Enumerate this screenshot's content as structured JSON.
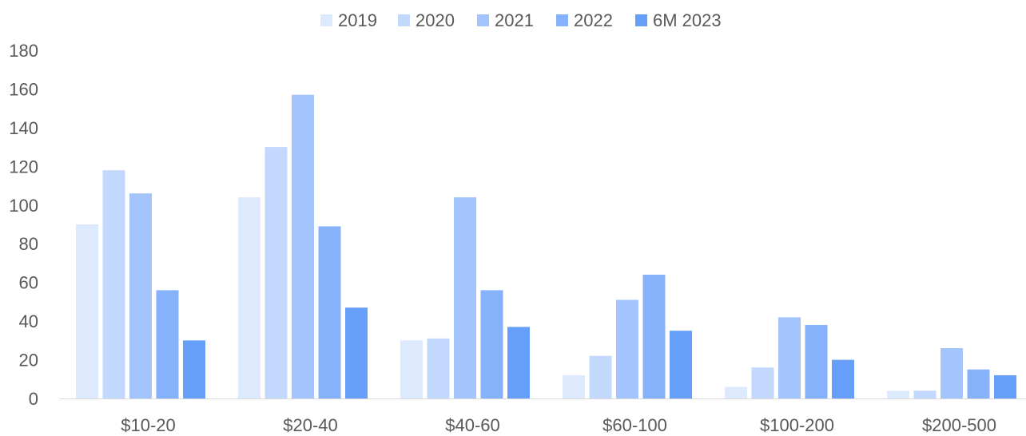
{
  "chart_data": {
    "type": "bar",
    "title": "",
    "xlabel": "",
    "ylabel": "",
    "categories": [
      "$10-20",
      "$20-40",
      "$40-60",
      "$60-100",
      "$100-200",
      "$200-500"
    ],
    "series": [
      {
        "name": "2019",
        "color": "#dde9fd",
        "values": [
          90,
          104,
          30,
          12,
          6,
          4
        ]
      },
      {
        "name": "2020",
        "color": "#c2d8fd",
        "values": [
          118,
          130,
          31,
          22,
          16,
          4
        ]
      },
      {
        "name": "2021",
        "color": "#a3c4fc",
        "values": [
          106,
          157,
          104,
          51,
          42,
          26
        ]
      },
      {
        "name": "2022",
        "color": "#86b2fb",
        "values": [
          56,
          89,
          56,
          64,
          38,
          15
        ]
      },
      {
        "name": "6M 2023",
        "color": "#659ffa",
        "values": [
          30,
          47,
          37,
          35,
          20,
          12
        ]
      }
    ],
    "ylim": [
      0,
      180
    ],
    "yticks": [
      "0",
      "20",
      "40",
      "60",
      "80",
      "100",
      "120",
      "140",
      "160",
      "180"
    ],
    "grid": false,
    "legend_position": "top"
  }
}
